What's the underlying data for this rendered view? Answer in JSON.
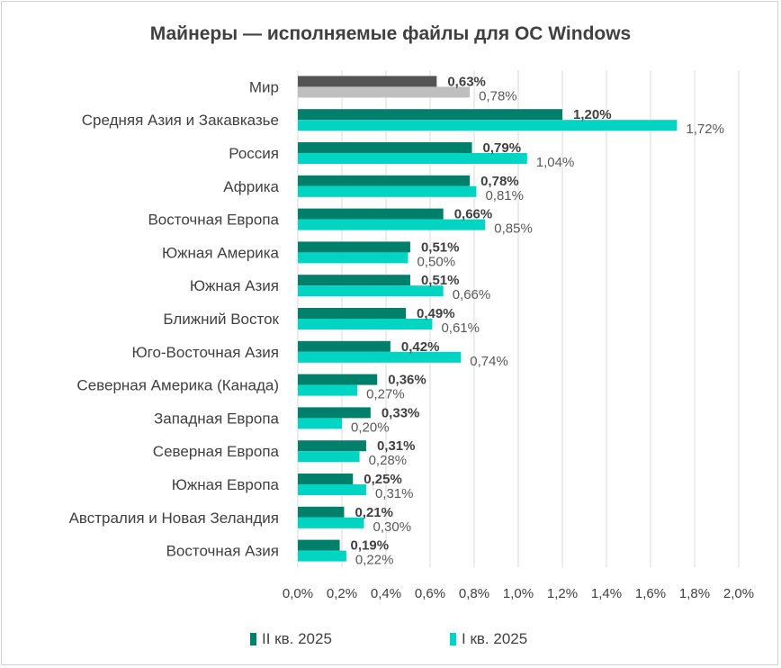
{
  "chart_data": {
    "type": "bar",
    "orientation": "horizontal",
    "title": "Майнеры — исполняемые файлы для ОС Windows",
    "categories": [
      "Мир",
      "Средняя Азия и Закавказье",
      "Россия",
      "Африка",
      "Восточная Европа",
      "Южная Америка",
      "Южная Азия",
      "Ближний Восток",
      "Юго-Восточная Азия",
      "Северная Америка (Канада)",
      "Западная Европа",
      "Северная Европа",
      "Южная Европа",
      "Австралия и Новая Зеландия",
      "Восточная Азия"
    ],
    "series": [
      {
        "name": "II кв. 2025",
        "values": [
          0.63,
          1.2,
          0.79,
          0.78,
          0.66,
          0.51,
          0.51,
          0.49,
          0.42,
          0.36,
          0.33,
          0.31,
          0.25,
          0.21,
          0.19
        ],
        "labels": [
          "0,63%",
          "1,20%",
          "0,79%",
          "0,78%",
          "0,66%",
          "0,51%",
          "0,51%",
          "0,49%",
          "0,42%",
          "0,36%",
          "0,33%",
          "0,31%",
          "0,25%",
          "0,21%",
          "0,19%"
        ]
      },
      {
        "name": "I кв. 2025",
        "values": [
          0.78,
          1.72,
          1.04,
          0.81,
          0.85,
          0.5,
          0.66,
          0.61,
          0.74,
          0.27,
          0.2,
          0.28,
          0.31,
          0.3,
          0.22
        ],
        "labels": [
          "0,78%",
          "1,72%",
          "1,04%",
          "0,81%",
          "0,85%",
          "0,50%",
          "0,66%",
          "0,61%",
          "0,74%",
          "0,27%",
          "0,20%",
          "0,28%",
          "0,31%",
          "0,30%",
          "0,22%"
        ]
      }
    ],
    "xlim": [
      0,
      2.0
    ],
    "x_ticks": [
      0,
      0.2,
      0.4,
      0.6,
      0.8,
      1.0,
      1.2,
      1.4,
      1.6,
      1.8,
      2.0
    ],
    "x_tick_labels": [
      "0,0%",
      "0,2%",
      "0,4%",
      "0,6%",
      "0,8%",
      "1,0%",
      "1,2%",
      "1,4%",
      "1,6%",
      "1,8%",
      "2,0%"
    ],
    "grid": "vertical",
    "legend_position": "bottom",
    "colors": {
      "q2": "#00806b",
      "q1": "#00d4c3",
      "world_q2": "#545454",
      "world_q1": "#bfbfbf",
      "grid": "#d9d9d9"
    }
  },
  "legend": {
    "q2_label": "II кв. 2025",
    "q1_label": "I кв. 2025"
  }
}
